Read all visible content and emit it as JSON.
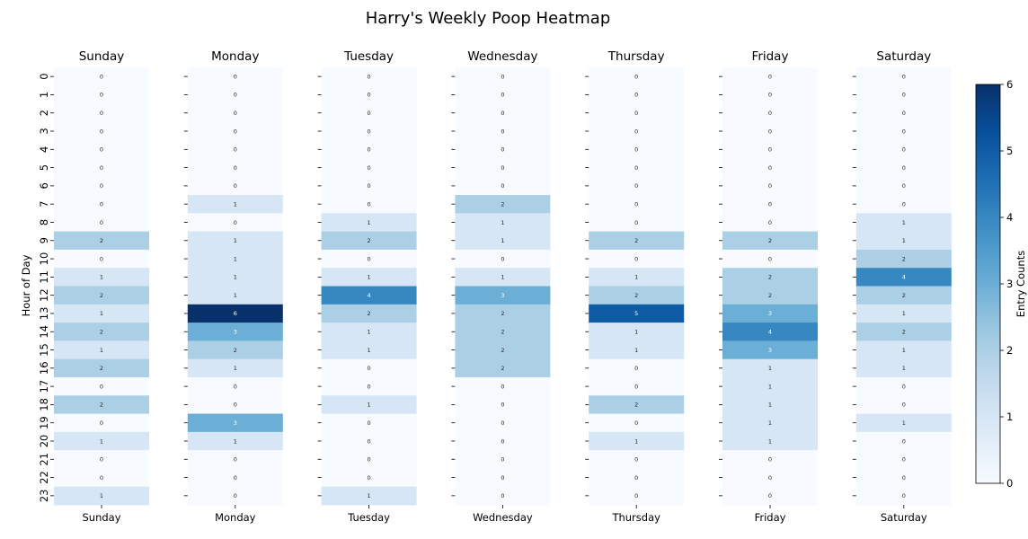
{
  "chart_data": {
    "type": "heatmap",
    "title": "Harry's Weekly Poop Heatmap",
    "ylabel": "Hour of Day",
    "colorbar_label": "Entry Counts",
    "colorbar_ticks": [
      "0",
      "1",
      "2",
      "3",
      "4",
      "5",
      "6"
    ],
    "color_range": [
      0,
      6
    ],
    "colormap": "Blues",
    "hours": [
      "0",
      "1",
      "2",
      "3",
      "4",
      "5",
      "6",
      "7",
      "8",
      "9",
      "10",
      "11",
      "12",
      "13",
      "14",
      "15",
      "16",
      "17",
      "18",
      "19",
      "20",
      "21",
      "22",
      "23"
    ],
    "days": [
      {
        "name": "Sunday",
        "values": [
          0,
          0,
          0,
          0,
          0,
          0,
          0,
          0,
          0,
          2,
          0,
          1,
          2,
          1,
          2,
          1,
          2,
          0,
          2,
          0,
          1,
          0,
          0,
          1
        ]
      },
      {
        "name": "Monday",
        "values": [
          0,
          0,
          0,
          0,
          0,
          0,
          0,
          1,
          0,
          1,
          1,
          1,
          1,
          6,
          3,
          2,
          1,
          0,
          0,
          3,
          1,
          0,
          0,
          0
        ]
      },
      {
        "name": "Tuesday",
        "values": [
          0,
          0,
          0,
          0,
          0,
          0,
          0,
          0,
          1,
          2,
          0,
          1,
          4,
          2,
          1,
          1,
          0,
          0,
          1,
          0,
          0,
          0,
          0,
          1
        ]
      },
      {
        "name": "Wednesday",
        "values": [
          0,
          0,
          0,
          0,
          0,
          0,
          0,
          2,
          1,
          1,
          0,
          1,
          3,
          2,
          2,
          2,
          2,
          0,
          0,
          0,
          0,
          0,
          0,
          0
        ]
      },
      {
        "name": "Thursday",
        "values": [
          0,
          0,
          0,
          0,
          0,
          0,
          0,
          0,
          0,
          2,
          0,
          1,
          2,
          5,
          1,
          1,
          0,
          0,
          2,
          0,
          1,
          0,
          0,
          0
        ]
      },
      {
        "name": "Friday",
        "values": [
          0,
          0,
          0,
          0,
          0,
          0,
          0,
          0,
          0,
          2,
          0,
          2,
          2,
          3,
          4,
          3,
          1,
          1,
          1,
          1,
          1,
          0,
          0,
          0
        ]
      },
      {
        "name": "Saturday",
        "values": [
          0,
          0,
          0,
          0,
          0,
          0,
          0,
          0,
          1,
          1,
          2,
          4,
          2,
          1,
          2,
          1,
          1,
          0,
          0,
          1,
          0,
          0,
          0,
          0
        ]
      }
    ]
  }
}
